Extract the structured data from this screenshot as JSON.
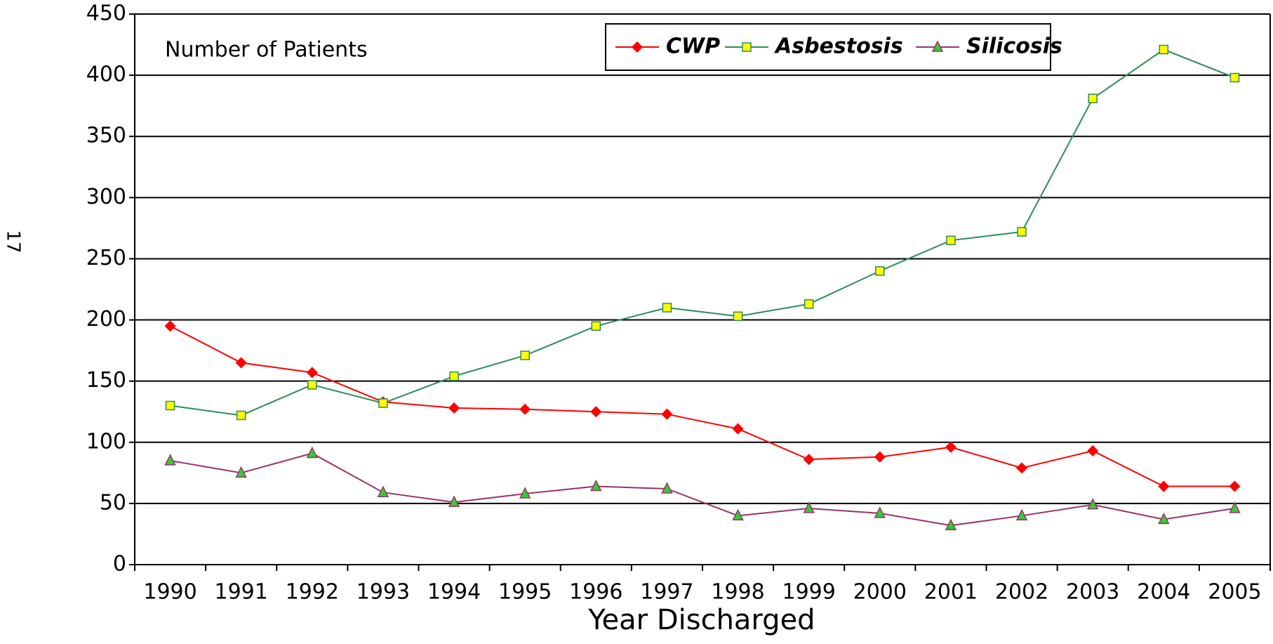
{
  "page_number": "17",
  "chart_data": {
    "type": "line",
    "annotation": "Number of Patients",
    "x_label": "Year Discharged",
    "categories": [
      "1990",
      "1991",
      "1992",
      "1993",
      "1994",
      "1995",
      "1996",
      "1997",
      "1998",
      "1999",
      "2000",
      "2001",
      "2002",
      "2003",
      "2004",
      "2005"
    ],
    "series": [
      {
        "name": "CWP",
        "color": "#ff0000",
        "marker": "diamond",
        "marker_fill": "#ff0000",
        "marker_stroke": "#ff0000",
        "values": [
          195,
          165,
          157,
          133,
          128,
          127,
          125,
          123,
          111,
          86,
          88,
          96,
          79,
          93,
          64,
          64
        ]
      },
      {
        "name": "Asbestosis",
        "color": "#2e8b57",
        "marker": "square",
        "marker_fill": "#ffff00",
        "marker_stroke": "#2e8b57",
        "values": [
          130,
          122,
          147,
          132,
          154,
          171,
          195,
          210,
          203,
          213,
          240,
          265,
          272,
          381,
          421,
          398
        ]
      },
      {
        "name": "Silicosis",
        "color": "#993366",
        "marker": "triangle",
        "marker_fill": "#33cc33",
        "marker_stroke": "#993366",
        "values": [
          85,
          75,
          91,
          59,
          51,
          58,
          64,
          62,
          40,
          46,
          42,
          32,
          40,
          49,
          37,
          46
        ]
      }
    ],
    "ylim": [
      0,
      450
    ],
    "yticks": [
      0,
      50,
      100,
      150,
      200,
      250,
      300,
      350,
      400,
      450
    ],
    "grid": true,
    "legend": "top"
  }
}
